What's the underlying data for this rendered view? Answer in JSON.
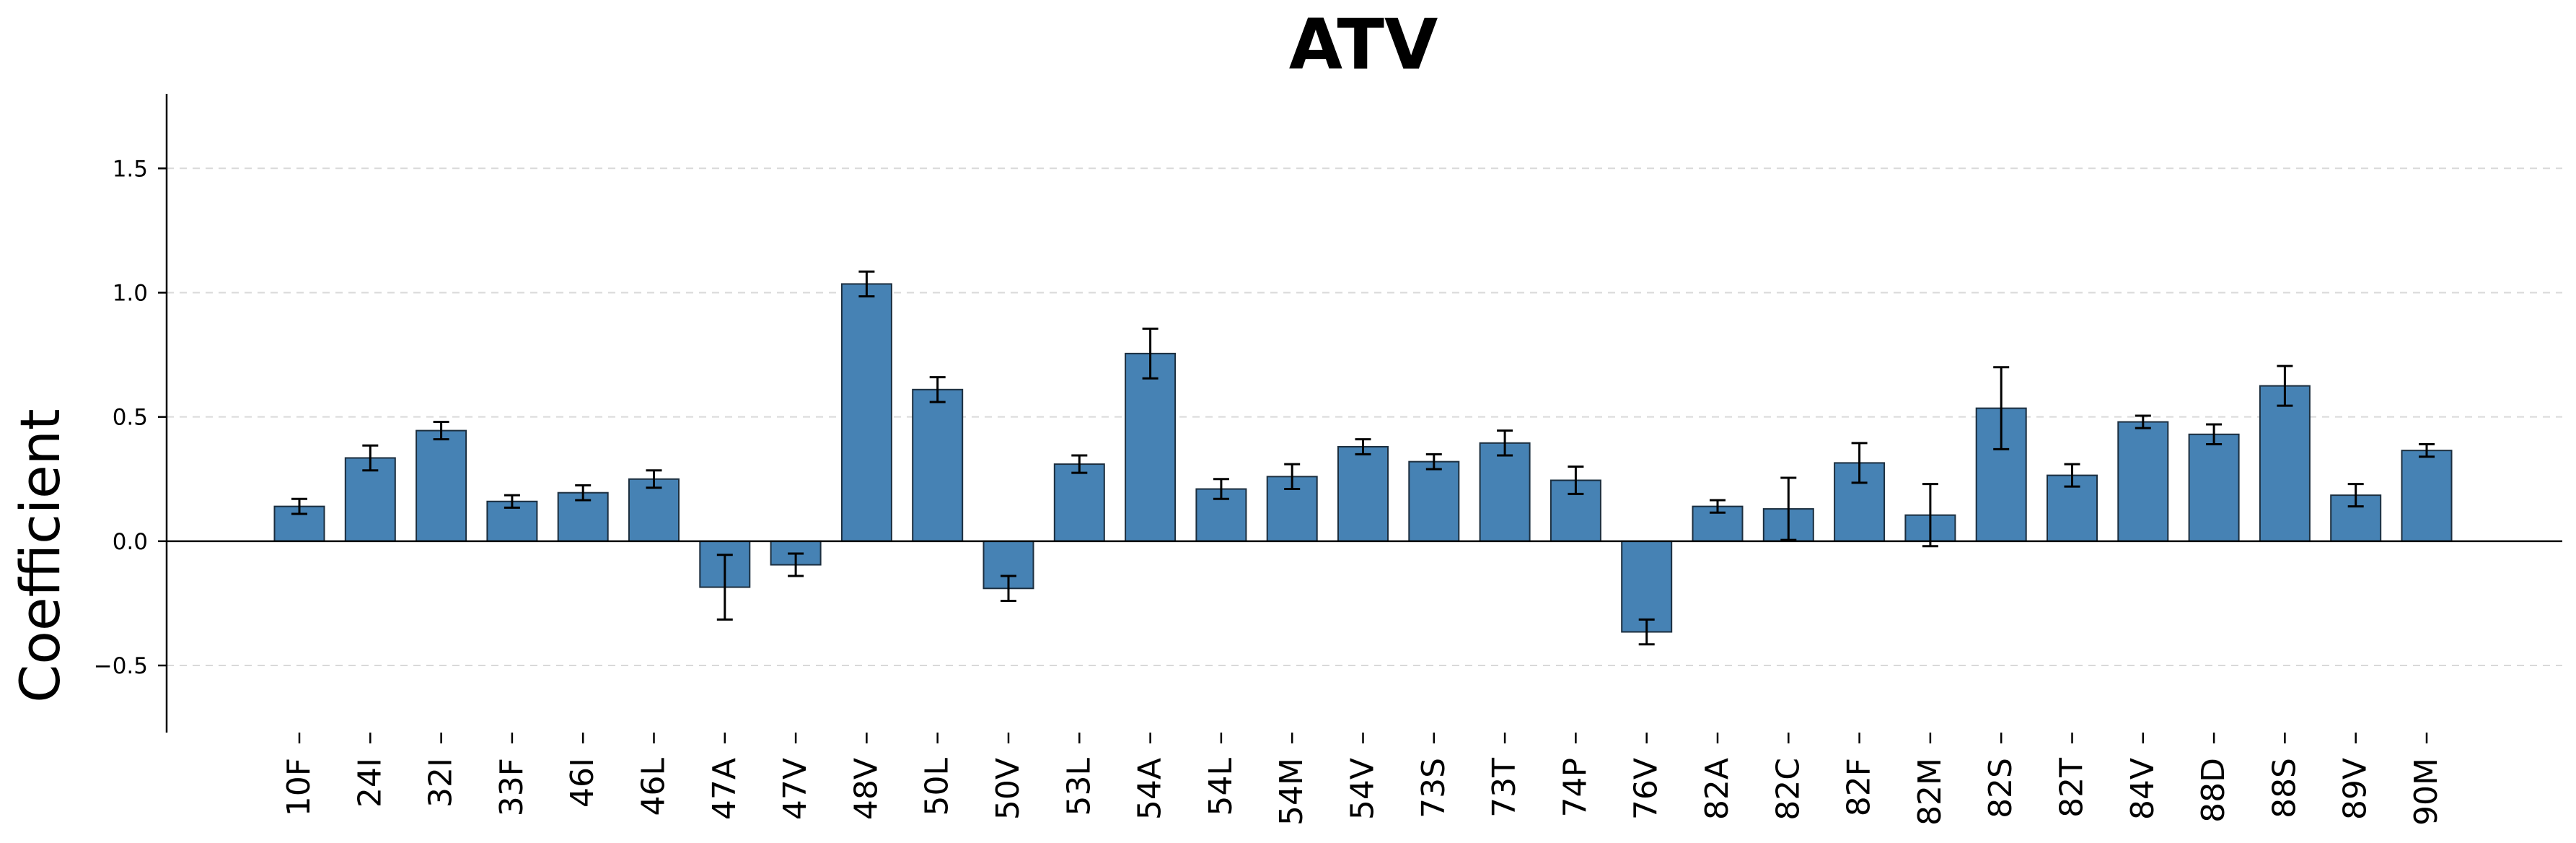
{
  "chart_data": {
    "type": "bar",
    "title": "ATV",
    "xlabel": "",
    "ylabel": "Coefficient",
    "ylim": [
      -0.77,
      1.8
    ],
    "yticks": [
      -0.5,
      0.0,
      0.5,
      1.0,
      1.5
    ],
    "ytick_labels": [
      "−0.5",
      "0.0",
      "0.5",
      "1.0",
      "1.5"
    ],
    "grid": "horizontal-dashed",
    "bar_color": "#4682b4",
    "categories": [
      "10F",
      "24I",
      "32I",
      "33F",
      "46I",
      "46L",
      "47A",
      "47V",
      "48V",
      "50L",
      "50V",
      "53L",
      "54A",
      "54L",
      "54M",
      "54V",
      "73S",
      "73T",
      "74P",
      "76V",
      "82A",
      "82C",
      "82F",
      "82M",
      "82S",
      "82T",
      "84V",
      "88D",
      "88S",
      "89V",
      "90M"
    ],
    "values": [
      0.14,
      0.335,
      0.445,
      0.16,
      0.195,
      0.25,
      -0.185,
      -0.095,
      1.035,
      0.61,
      -0.19,
      0.31,
      0.755,
      0.21,
      0.26,
      0.38,
      0.32,
      0.395,
      0.245,
      -0.365,
      0.14,
      0.13,
      0.315,
      0.105,
      0.535,
      0.265,
      0.48,
      0.43,
      0.625,
      0.185,
      0.365
    ],
    "errors": [
      0.03,
      0.05,
      0.035,
      0.025,
      0.03,
      0.035,
      0.13,
      0.045,
      0.05,
      0.05,
      0.05,
      0.035,
      0.1,
      0.04,
      0.05,
      0.03,
      0.03,
      0.05,
      0.055,
      0.05,
      0.025,
      0.125,
      0.08,
      0.125,
      0.165,
      0.045,
      0.025,
      0.04,
      0.08,
      0.045,
      0.025
    ]
  }
}
